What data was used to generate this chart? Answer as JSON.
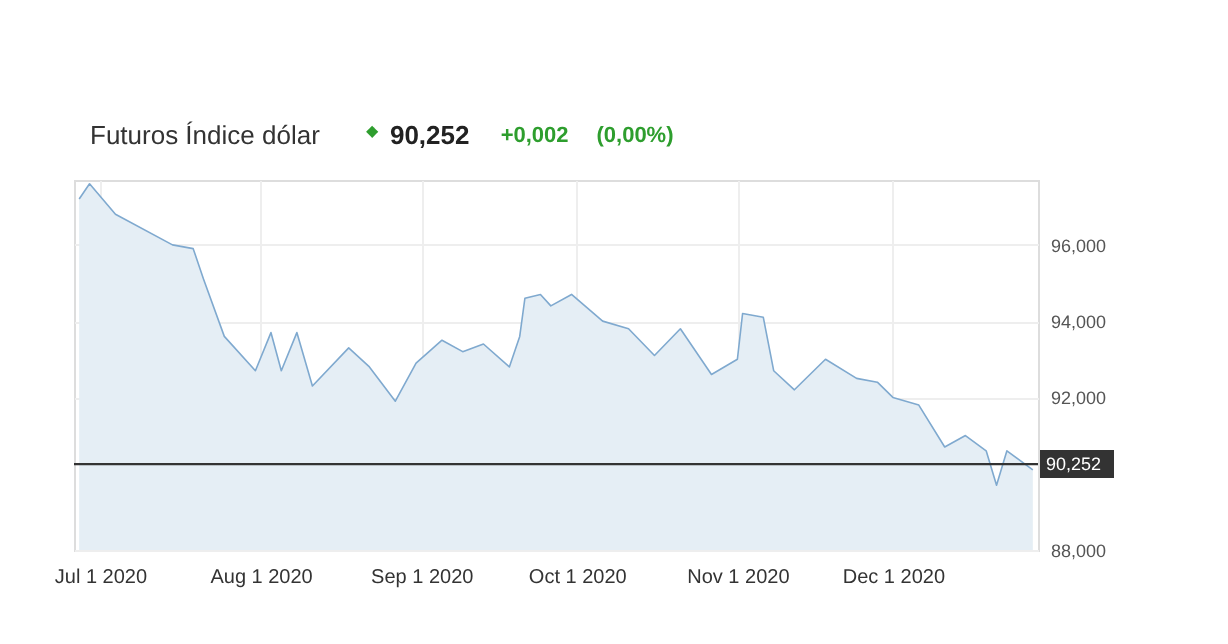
{
  "chart_data": {
    "type": "area",
    "title": "Futuros Índice dólar",
    "annotations": [
      "◆",
      "90,252",
      "+0,002",
      "(0,00%)"
    ],
    "x": [
      "2020-06-27",
      "2020-06-29",
      "2020-07-04",
      "2020-07-15",
      "2020-07-19",
      "2020-07-21",
      "2020-07-25",
      "2020-07-31",
      "2020-08-03",
      "2020-08-05",
      "2020-08-08",
      "2020-08-11",
      "2020-08-18",
      "2020-08-22",
      "2020-08-27",
      "2020-08-31",
      "2020-09-05",
      "2020-09-09",
      "2020-09-13",
      "2020-09-18",
      "2020-09-20",
      "2020-09-21",
      "2020-09-24",
      "2020-09-26",
      "2020-09-30",
      "2020-10-06",
      "2020-10-11",
      "2020-10-16",
      "2020-10-21",
      "2020-10-27",
      "2020-11-01",
      "2020-11-02",
      "2020-11-06",
      "2020-11-08",
      "2020-11-12",
      "2020-11-18",
      "2020-11-24",
      "2020-11-28",
      "2020-12-01",
      "2020-12-06",
      "2020-12-11",
      "2020-12-15",
      "2020-12-19",
      "2020-12-21",
      "2020-12-23",
      "2020-12-28"
    ],
    "series": [
      {
        "color": "#7fa9cf",
        "values": [
          97.2,
          97.6,
          96.8,
          96.0,
          95.9,
          95.1,
          93.6,
          92.7,
          93.7,
          92.7,
          93.7,
          92.3,
          93.3,
          92.8,
          91.9,
          92.9,
          93.5,
          93.2,
          93.4,
          92.8,
          93.6,
          94.6,
          94.7,
          94.4,
          94.7,
          94.0,
          93.8,
          93.1,
          93.8,
          92.6,
          93.0,
          94.2,
          94.1,
          92.7,
          92.2,
          93.0,
          92.5,
          92.4,
          92.0,
          91.8,
          90.7,
          91.0,
          90.6,
          89.7,
          90.6,
          90.1
        ]
      }
    ],
    "xlim": [
      "2020-06-26",
      "2020-12-29"
    ],
    "xticks": [
      {
        "value": "2020-07-01",
        "label": "Jul 1 2020"
      },
      {
        "value": "2020-08-01",
        "label": "Aug 1 2020"
      },
      {
        "value": "2020-09-01",
        "label": "Sep 1 2020"
      },
      {
        "value": "2020-10-01",
        "label": "Oct 1 2020"
      },
      {
        "value": "2020-11-01",
        "label": "Nov 1 2020"
      },
      {
        "value": "2020-12-01",
        "label": "Dec 1 2020"
      }
    ],
    "ylim": [
      88,
      97.7
    ],
    "yticks": [
      {
        "value": 88,
        "label": "88,000"
      },
      {
        "value": 92,
        "label": "92,000"
      },
      {
        "value": 94,
        "label": "94,000"
      },
      {
        "value": 96,
        "label": "96,000"
      }
    ],
    "ref_lines": [
      {
        "axis": "y",
        "value": 90.252,
        "label": "90,252",
        "color": "#333333"
      }
    ],
    "grid": true
  }
}
